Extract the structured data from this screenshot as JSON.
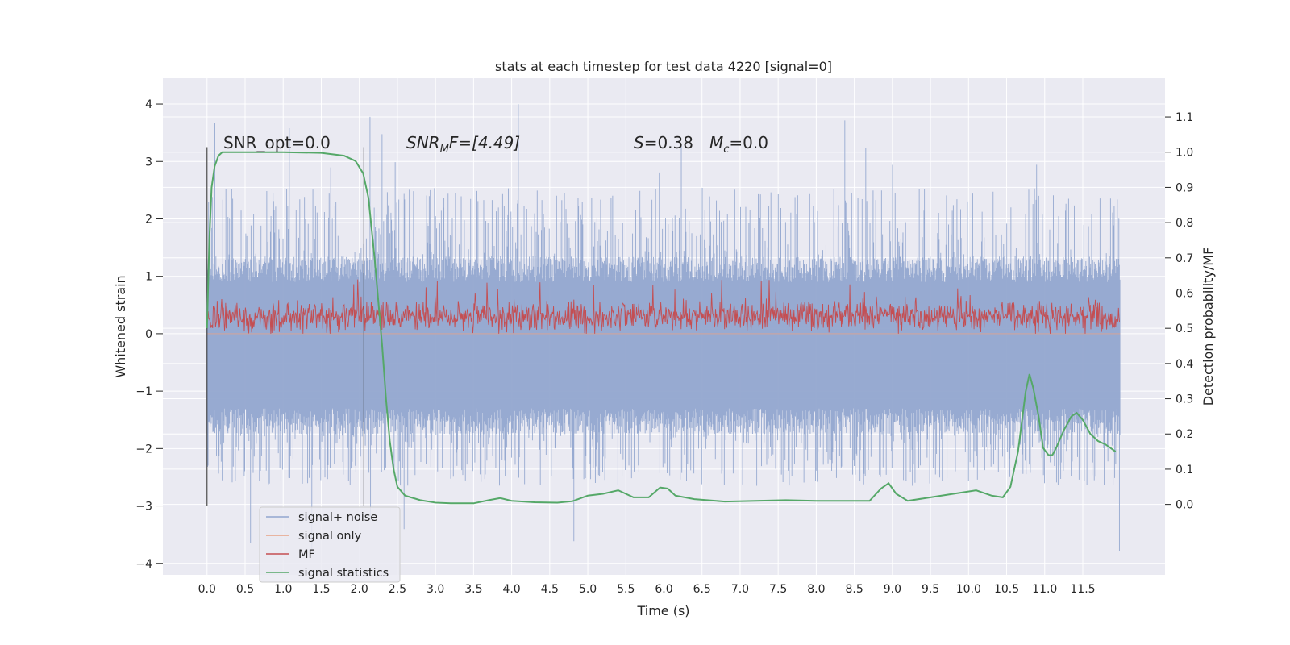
{
  "chart_data": {
    "type": "line",
    "title": "stats at each timestep for test data 4220 [signal=0]",
    "xlabel": "Time (s)",
    "ylabel": "Whitened strain",
    "ylabel_right": "Detection probability/MF",
    "xlim": [
      -0.58,
      12.58
    ],
    "ylim": [
      -4.2,
      4.45
    ],
    "ylim_right": [
      -0.2,
      1.21
    ],
    "x_ticks": [
      "0.0",
      "0.5",
      "1.0",
      "1.5",
      "2.0",
      "2.5",
      "3.0",
      "3.5",
      "4.0",
      "4.5",
      "5.0",
      "5.5",
      "6.0",
      "6.5",
      "7.0",
      "7.5",
      "8.0",
      "8.5",
      "9.0",
      "9.5",
      "10.0",
      "10.5",
      "11.0",
      "11.5"
    ],
    "y_ticks": [
      -4,
      -3,
      -2,
      -1,
      0,
      1,
      2,
      3,
      4
    ],
    "y_tick_labels": [
      "−4",
      "−3",
      "−2",
      "−1",
      "0",
      "1",
      "2",
      "3",
      "4"
    ],
    "y_right_ticks": [
      "0.0",
      "0.1",
      "0.2",
      "0.3",
      "0.4",
      "0.5",
      "0.6",
      "0.7",
      "0.8",
      "0.9",
      "1.0",
      "1.1"
    ],
    "grid": true,
    "legend_position": "bottom-left",
    "legend": [
      {
        "label": "signal+ noise",
        "color": "#92a6cf"
      },
      {
        "label": "signal only",
        "color": "#e8a285"
      },
      {
        "label": "MF",
        "color": "#c44e52"
      },
      {
        "label": "signal statistics",
        "color": "#55a868"
      }
    ],
    "annotations": {
      "snr_opt": "SNR_opt=0.0",
      "snr_mf_symbol": "SNR",
      "snr_mf_subscript": "M",
      "snr_mf_rest": "F=[4.49]",
      "s_symbol": "S",
      "s_value": "=0.38",
      "mc_symbol": "M",
      "mc_subscript": "c",
      "mc_value": "=0.0"
    },
    "vertical_markers": [
      0.0,
      2.06
    ],
    "series": [
      {
        "name": "signal+ noise",
        "color": "#92a6cf",
        "axis": "left",
        "x_range": [
          0.0,
          11.99
        ],
        "typical_range": [
          -1.75,
          1.35
        ],
        "spike_range": [
          -3.85,
          4.1
        ]
      },
      {
        "name": "signal only",
        "color": "#e8a285",
        "axis": "left",
        "constant": 0.0
      },
      {
        "name": "MF",
        "color": "#c44e52",
        "axis": "left",
        "x_range": [
          0.0,
          11.99
        ],
        "range": [
          0.0,
          1.0
        ]
      },
      {
        "name": "signal statistics",
        "color": "#55a868",
        "axis": "right",
        "x": [
          0.0,
          0.03,
          0.06,
          0.1,
          0.15,
          0.2,
          0.3,
          0.5,
          1.0,
          1.5,
          1.8,
          1.95,
          2.05,
          2.12,
          2.2,
          2.3,
          2.35,
          2.4,
          2.45,
          2.5,
          2.6,
          2.8,
          3.0,
          3.2,
          3.5,
          3.7,
          3.85,
          4.0,
          4.3,
          4.6,
          4.8,
          5.0,
          5.2,
          5.4,
          5.6,
          5.8,
          5.95,
          6.05,
          6.15,
          6.4,
          6.8,
          7.2,
          7.6,
          8.0,
          8.4,
          8.7,
          8.85,
          8.95,
          9.05,
          9.2,
          9.5,
          9.8,
          10.1,
          10.3,
          10.45,
          10.55,
          10.65,
          10.75,
          10.8,
          10.85,
          10.92,
          10.98,
          11.05,
          11.1,
          11.15,
          11.25,
          11.35,
          11.42,
          11.5,
          11.6,
          11.7,
          11.8,
          11.93
        ],
        "values": [
          0.5,
          0.75,
          0.9,
          0.96,
          0.99,
          1.0,
          1.0,
          1.0,
          1.0,
          0.998,
          0.99,
          0.975,
          0.94,
          0.87,
          0.7,
          0.45,
          0.3,
          0.18,
          0.1,
          0.05,
          0.025,
          0.012,
          0.005,
          0.003,
          0.003,
          0.012,
          0.018,
          0.01,
          0.006,
          0.005,
          0.009,
          0.025,
          0.03,
          0.04,
          0.02,
          0.02,
          0.048,
          0.045,
          0.025,
          0.015,
          0.008,
          0.01,
          0.012,
          0.01,
          0.01,
          0.01,
          0.045,
          0.06,
          0.03,
          0.01,
          0.02,
          0.03,
          0.04,
          0.025,
          0.02,
          0.05,
          0.15,
          0.32,
          0.37,
          0.33,
          0.25,
          0.16,
          0.14,
          0.14,
          0.16,
          0.21,
          0.25,
          0.26,
          0.24,
          0.2,
          0.18,
          0.17,
          0.15
        ]
      }
    ]
  }
}
